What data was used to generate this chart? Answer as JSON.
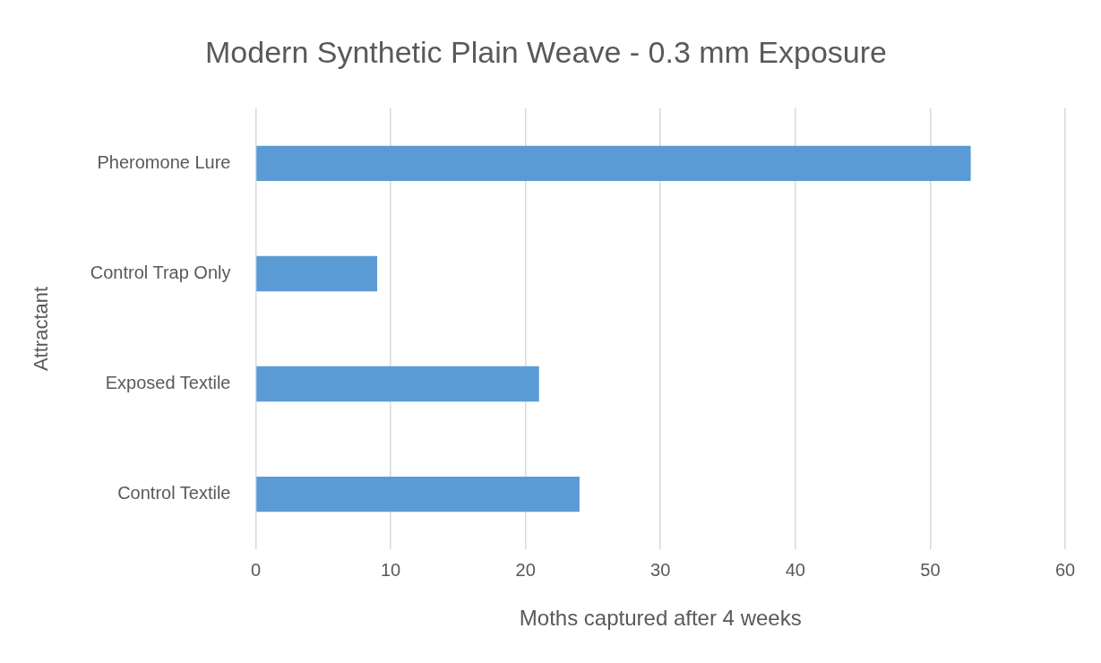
{
  "chart_data": {
    "type": "bar",
    "orientation": "horizontal",
    "title": "Modern Synthetic Plain Weave - 0.3 mm Exposure",
    "xlabel": "Moths captured after 4 weeks",
    "ylabel": "Attractant",
    "categories": [
      "Pheromone Lure",
      "Control Trap Only",
      "Exposed Textile",
      "Control Textile"
    ],
    "values": [
      53,
      9,
      21,
      24
    ],
    "color": "#5b9bd5",
    "xlim": [
      0,
      60
    ],
    "xticks": [
      0,
      10,
      20,
      30,
      40,
      50,
      60
    ],
    "grid": "x",
    "legend": false
  }
}
